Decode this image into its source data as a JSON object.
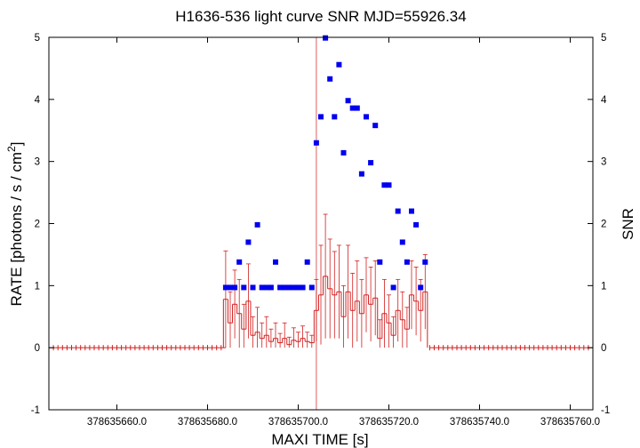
{
  "chart_data": {
    "type": "scatter",
    "title": "H1636-536 light curve  SNR MJD=55926.34",
    "xlabel": "MAXI TIME [s]",
    "ylabel_left": {
      "main": "RATE [photons / s / cm",
      "sup": "2",
      "end": "]"
    },
    "ylabel_right": "SNR",
    "xlim": [
      378635645,
      378635765
    ],
    "ylim": [
      -1,
      5
    ],
    "y2lim": [
      -1,
      5
    ],
    "x_ticks": [
      378635660,
      378635680,
      378635700,
      378635720,
      378635740,
      378635760
    ],
    "x_tick_labels": [
      "378635660.0",
      "378635680.0",
      "378635700.0",
      "378635720.0",
      "378635740.0",
      "378635760.0"
    ],
    "y_ticks": [
      -1,
      0,
      1,
      2,
      3,
      4,
      5
    ],
    "y_tick_labels": [
      "-1",
      "0",
      "1",
      "2",
      "3",
      "4",
      "5"
    ],
    "y2_ticks": [
      -1,
      0,
      1,
      2,
      3,
      4,
      5
    ],
    "y2_tick_labels": [
      "-1",
      "0",
      "1",
      "2",
      "3",
      "4",
      "5"
    ],
    "grid": false,
    "vline_x": 378635704,
    "colors": {
      "snr": "#0000ee",
      "rate": "#d21e1e",
      "vline": "#e06060",
      "axis": "#000000"
    },
    "series": [
      {
        "name": "",
        "axis": "right",
        "kind": "snr_points",
        "x": [
          378635684.0,
          378635685.0,
          378635686.0,
          378635687.0,
          378635688.0,
          378635689.0,
          378635690.0,
          378635691.0,
          378635692.0,
          378635693.0,
          378635694.0,
          378635695.0,
          378635696.0,
          378635697.0,
          378635698.0,
          378635699.0,
          378635700.0,
          378635701.0,
          378635702.0,
          378635703.0,
          378635704.0,
          378635705.0,
          378635706.0,
          378635707.0,
          378635708.0,
          378635709.0,
          378635710.0,
          378635711.0,
          378635712.0,
          378635713.0,
          378635714.0,
          378635715.0,
          378635716.0,
          378635717.0,
          378635718.0,
          378635719.0,
          378635720.0,
          378635721.0,
          378635722.0,
          378635723.0,
          378635724.0,
          378635725.0,
          378635726.0,
          378635727.0,
          378635728.0
        ],
        "y": [
          0.97,
          0.97,
          0.97,
          1.38,
          0.97,
          1.7,
          0.97,
          1.98,
          0.97,
          0.97,
          0.97,
          1.38,
          0.97,
          0.97,
          0.97,
          0.97,
          0.97,
          0.97,
          1.38,
          0.97,
          3.3,
          3.72,
          4.99,
          4.33,
          3.72,
          4.56,
          3.14,
          3.98,
          3.86,
          3.86,
          2.8,
          3.72,
          2.98,
          3.58,
          1.38,
          2.62,
          2.62,
          0.97,
          2.2,
          1.7,
          1.38,
          2.2,
          1.98,
          0.97,
          1.38
        ]
      },
      {
        "name": "",
        "axis": "left",
        "kind": "rate_steps",
        "x": [
          378635684.0,
          378635685.0,
          378635686.0,
          378635687.0,
          378635688.0,
          378635689.0,
          378635690.0,
          378635691.0,
          378635692.0,
          378635693.0,
          378635694.0,
          378635695.0,
          378635696.0,
          378635697.0,
          378635698.0,
          378635699.0,
          378635700.0,
          378635701.0,
          378635702.0,
          378635703.0,
          378635704.0,
          378635705.0,
          378635706.0,
          378635707.0,
          378635708.0,
          378635709.0,
          378635710.0,
          378635711.0,
          378635712.0,
          378635713.0,
          378635714.0,
          378635715.0,
          378635716.0,
          378635717.0,
          378635718.0,
          378635719.0,
          378635720.0,
          378635721.0,
          378635722.0,
          378635723.0,
          378635724.0,
          378635725.0,
          378635726.0,
          378635727.0,
          378635728.0
        ],
        "y": [
          0.78,
          0.4,
          0.7,
          0.55,
          0.3,
          0.75,
          0.2,
          0.25,
          0.15,
          0.2,
          0.1,
          0.15,
          0.08,
          0.15,
          0.05,
          0.12,
          0.1,
          0.15,
          0.1,
          0.08,
          0.6,
          0.85,
          1.15,
          0.95,
          0.85,
          0.9,
          0.5,
          0.9,
          0.6,
          0.75,
          0.55,
          0.85,
          0.7,
          0.8,
          0.15,
          0.55,
          0.4,
          0.2,
          0.6,
          0.45,
          0.3,
          0.85,
          0.75,
          0.6,
          0.9
        ],
        "err": [
          0.78,
          0.5,
          0.55,
          0.55,
          0.4,
          0.6,
          0.3,
          0.4,
          0.25,
          0.3,
          0.2,
          0.25,
          0.15,
          0.25,
          0.12,
          0.2,
          0.15,
          0.2,
          0.15,
          0.12,
          0.5,
          0.8,
          1.0,
          0.8,
          0.7,
          0.75,
          0.5,
          0.75,
          0.6,
          0.65,
          0.55,
          0.6,
          0.6,
          0.6,
          0.3,
          0.55,
          0.45,
          0.3,
          0.5,
          0.45,
          0.35,
          0.55,
          0.55,
          0.5,
          0.6
        ]
      },
      {
        "name": "",
        "axis": "left",
        "kind": "rate_zero",
        "x_start": 378635645,
        "x_end": 378635765,
        "step": 1,
        "gap": [
          378635684,
          378635729
        ],
        "y": 0
      }
    ]
  }
}
